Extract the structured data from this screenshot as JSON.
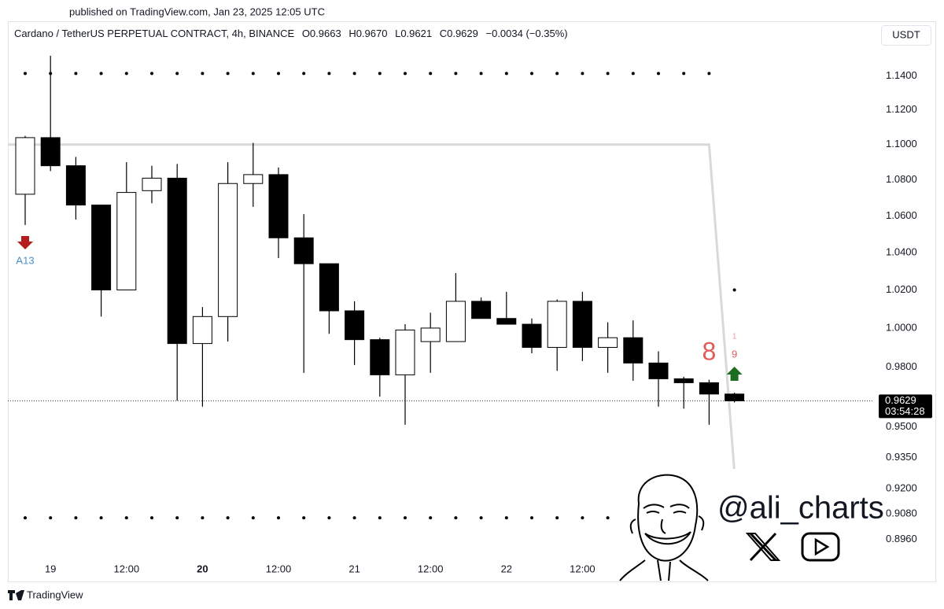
{
  "published": "published on TradingView.com, Jan 23, 2025 12:05 UTC",
  "chart_data": {
    "type": "candlestick",
    "title": "Cardano / TetherUS PERPETUAL CONTRACT, 4h, BINANCE",
    "ohlc_labels": [
      "O0.9663",
      "H0.9670",
      "L0.9621",
      "C0.9629"
    ],
    "change": "−0.0034 (−0.35%)",
    "currency": "USDT",
    "categories": [
      null,
      "19",
      null,
      null,
      "12:00",
      null,
      null,
      "20",
      null,
      null,
      "12:00",
      null,
      null,
      "21",
      null,
      null,
      "12:00",
      null,
      null,
      "22",
      null,
      null,
      "12:00",
      null,
      null,
      null,
      null,
      null,
      null
    ],
    "bold_category_index": 7,
    "open": [
      1.072,
      1.104,
      1.088,
      1.066,
      1.02,
      1.074,
      1.081,
      0.992,
      1.006,
      1.078,
      1.083,
      1.048,
      1.034,
      1.009,
      0.994,
      0.976,
      0.993,
      0.993,
      1.014,
      1.005,
      1.002,
      0.99,
      1.014,
      0.99,
      0.995,
      0.982,
      0.974,
      0.972,
      0.9663
    ],
    "high": [
      1.105,
      1.152,
      1.093,
      1.066,
      1.09,
      1.088,
      1.089,
      1.011,
      1.09,
      1.101,
      1.087,
      1.061,
      1.034,
      1.014,
      0.995,
      1.002,
      1.008,
      1.029,
      1.016,
      1.019,
      1.005,
      1.015,
      1.019,
      1.003,
      1.004,
      0.988,
      0.975,
      0.9735,
      0.967
    ],
    "low": [
      1.055,
      1.085,
      1.058,
      1.006,
      1.02,
      1.067,
      0.963,
      0.96,
      0.993,
      1.065,
      1.037,
      0.977,
      0.997,
      0.981,
      0.965,
      0.951,
      0.977,
      0.993,
      1.005,
      1.002,
      0.987,
      0.978,
      0.983,
      0.977,
      0.973,
      0.96,
      0.959,
      0.951,
      0.9621
    ],
    "close": [
      1.104,
      1.088,
      1.066,
      1.02,
      1.073,
      1.081,
      0.992,
      1.006,
      1.078,
      1.083,
      1.048,
      1.034,
      1.009,
      0.994,
      0.976,
      0.999,
      1.0,
      1.014,
      1.005,
      1.002,
      0.99,
      1.014,
      0.99,
      0.995,
      0.982,
      0.974,
      0.972,
      0.9663,
      0.9629
    ],
    "up_color": "#ffffff",
    "down_color": "#000000",
    "ylim": [
      0.877,
      1.159
    ],
    "log_scale": true,
    "yticks": [
      {
        "value": 1.14,
        "label": "1.1400"
      },
      {
        "value": 1.12,
        "label": "1.1200"
      },
      {
        "value": 1.1,
        "label": "1.1000"
      },
      {
        "value": 1.08,
        "label": "1.0800"
      },
      {
        "value": 1.06,
        "label": "1.0600"
      },
      {
        "value": 1.04,
        "label": "1.0400"
      },
      {
        "value": 1.02,
        "label": "1.0200"
      },
      {
        "value": 1,
        "label": "1.0000"
      },
      {
        "value": 0.98,
        "label": "0.9800"
      },
      {
        "value": 0.95,
        "label": "0.9500"
      },
      {
        "value": 0.935,
        "label": "0.9350"
      },
      {
        "value": 0.92,
        "label": "0.9200"
      },
      {
        "value": 0.908,
        "label": "0.9080"
      },
      {
        "value": 0.896,
        "label": "0.8960"
      }
    ],
    "upper_dots": [
      1.1414,
      1.1414,
      1.1414,
      1.1414,
      1.1414,
      1.1414,
      1.1414,
      1.1414,
      1.1414,
      1.1414,
      1.1414,
      1.1414,
      1.1414,
      1.1414,
      1.1414,
      1.1414,
      1.1414,
      1.1414,
      1.1414,
      1.1414,
      1.1414,
      1.1414,
      1.1414,
      1.1414,
      1.1414,
      1.1414,
      1.1414,
      1.1414,
      1.02
    ],
    "lower_dots": [
      0.9061,
      0.9061,
      0.9061,
      0.9061,
      0.9061,
      0.9061,
      0.9061,
      0.9061,
      0.9061,
      0.9061,
      0.9061,
      0.9061,
      0.9061,
      0.9061,
      0.9061,
      0.9061,
      0.9061,
      0.9061,
      0.9061,
      0.9061,
      0.9061,
      0.9061,
      0.9061,
      0.9061,
      null,
      null,
      null,
      null,
      null
    ],
    "trend_line": [
      1.1,
      1.1,
      1.1,
      1.1,
      1.1,
      1.1,
      1.1,
      1.1,
      1.1,
      1.1,
      1.1,
      1.1,
      1.1,
      1.1,
      1.1,
      1.1,
      1.1,
      1.1,
      1.1,
      1.1,
      1.1,
      1.1,
      1.1,
      1.1,
      1.1,
      1.1,
      1.1,
      1.1,
      0.928
    ],
    "annotations": [
      {
        "text": "A13",
        "index": 0,
        "color": "#4a8fc4",
        "arrow": "down",
        "arrow_color": "#b71c1c"
      },
      {
        "text": "8",
        "index": 27,
        "color": "#e05a5a"
      },
      {
        "text": "1",
        "index": 28,
        "color": "#ef9a9a"
      },
      {
        "text": "9",
        "index": 28,
        "color": "#e05a5a"
      },
      {
        "index": 28,
        "arrow": "up",
        "arrow_color": "#1b6e20"
      }
    ],
    "last_price": 0.9629,
    "countdown": "03:54:28"
  },
  "watermark": "@ali_charts",
  "footer": "TradingView"
}
